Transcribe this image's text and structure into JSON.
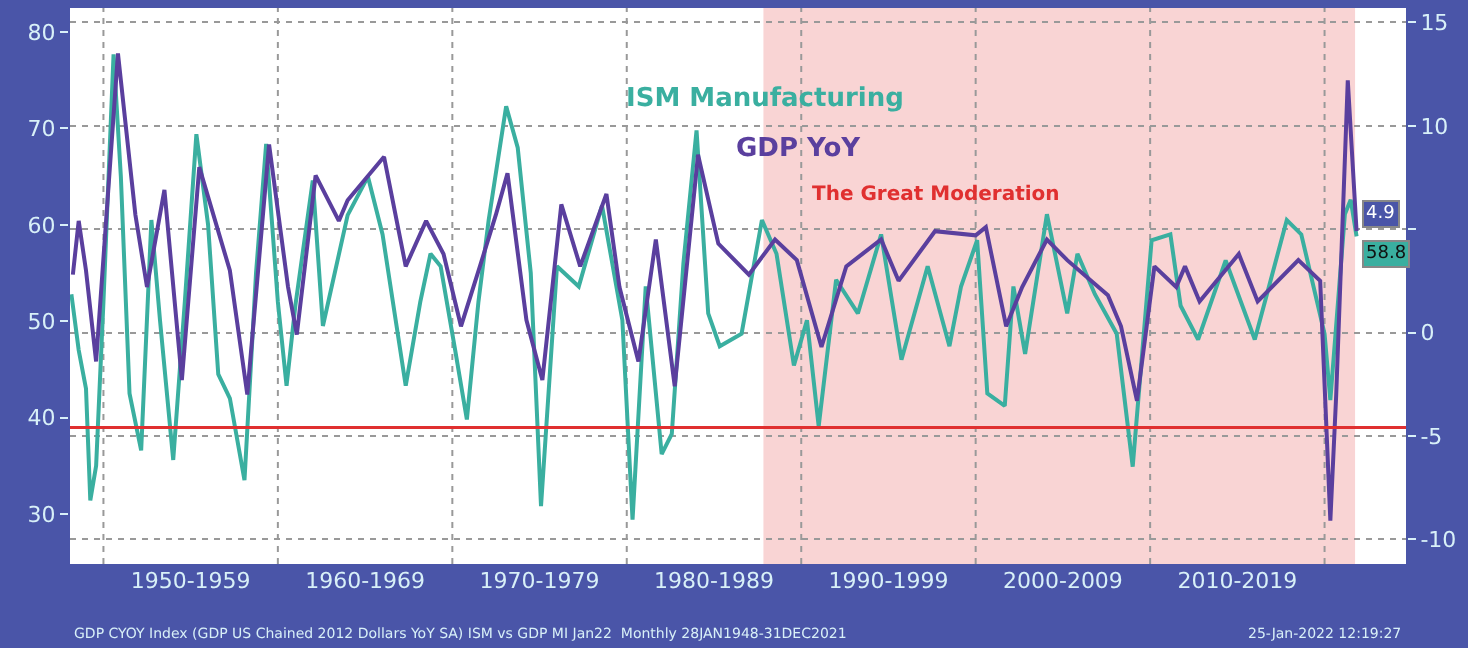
{
  "chart_data": {
    "type": "line",
    "series": [
      {
        "name": "ISM Manufacturing",
        "color": "#3aafa0",
        "axis": "y",
        "x": [
          "1948-03",
          "1948-08",
          "1949-01",
          "1949-04",
          "1949-08",
          "1950-01",
          "1950-08",
          "1951-01",
          "1951-07",
          "1952-03",
          "1952-10",
          "1953-04",
          "1954-01",
          "1954-09",
          "1955-05",
          "1956-01",
          "1956-08",
          "1957-04",
          "1958-02",
          "1958-10",
          "1959-05",
          "1960-01",
          "1960-07",
          "1961-01",
          "1962-01",
          "1962-08",
          "1964-01",
          "1965-03",
          "1966-01",
          "1967-05",
          "1968-03",
          "1968-10",
          "1969-05",
          "1970-03",
          "1970-11",
          "1971-07",
          "1972-02",
          "1973-02",
          "1973-10",
          "1974-07",
          "1975-02",
          "1976-01",
          "1977-04",
          "1978-08",
          "1979-10",
          "1980-05",
          "1981-02",
          "1982-01",
          "1982-08",
          "1983-04",
          "1984-01",
          "1984-09",
          "1985-05",
          "1986-08",
          "1987-10",
          "1988-08",
          "1989-08",
          "1990-05",
          "1991-01",
          "1992-01",
          "1993-04",
          "1994-08",
          "1995-10",
          "1997-04",
          "1998-07",
          "1999-03",
          "2000-02",
          "2000-09",
          "2001-09",
          "2002-03",
          "2002-11",
          "2004-02",
          "2005-04",
          "2005-11",
          "2006-11",
          "2008-02",
          "2009-01",
          "2010-02",
          "2011-03",
          "2011-10",
          "2012-10",
          "2014-05",
          "2016-01",
          "2017-11",
          "2018-09",
          "2020-01",
          "2020-05",
          "2021-03",
          "2021-07",
          "2021-11"
        ],
        "values": [
          52.8,
          47,
          43,
          31.4,
          35,
          52,
          77.7,
          65,
          42.5,
          36.6,
          60.5,
          50,
          35.6,
          52,
          69.4,
          60,
          44.5,
          42,
          33.5,
          55,
          68.4,
          52,
          43.3,
          51.6,
          64.6,
          49.5,
          61,
          65,
          59,
          43.3,
          52,
          57,
          55.7,
          47,
          39.8,
          52,
          60.5,
          72.3,
          68,
          55,
          30.8,
          55.7,
          53.6,
          62,
          50.1,
          29.4,
          53.6,
          36.2,
          38.3,
          56,
          69.8,
          50.8,
          47.4,
          48.7,
          60.5,
          57,
          45.4,
          50.1,
          39.1,
          54.3,
          50.8,
          59,
          46,
          55.7,
          47.4,
          53.6,
          58.4,
          42.5,
          41.2,
          53.6,
          46.6,
          61.1,
          50.8,
          57,
          52.8,
          48.7,
          34.9,
          58.4,
          59,
          51.6,
          48.1,
          56.3,
          48.1,
          60.5,
          59,
          48.7,
          41.8,
          61.1,
          62.6,
          58.8
        ],
        "value_labels": [
          null,
          null,
          null,
          null,
          null,
          null,
          null,
          null,
          null,
          null,
          null,
          null,
          null,
          null,
          null,
          null,
          null,
          null,
          null,
          null,
          null,
          null,
          null,
          null,
          null,
          null,
          null,
          null,
          null,
          null,
          null,
          null,
          null,
          null,
          null,
          null,
          null,
          null,
          null,
          null,
          null,
          null,
          null,
          null,
          null,
          null,
          null,
          null,
          null,
          null,
          null,
          null,
          null,
          null,
          null,
          null,
          null,
          null,
          null,
          null,
          null,
          null,
          null,
          null,
          null,
          null,
          null,
          null,
          null,
          null,
          null,
          null,
          null,
          null,
          null,
          null,
          null,
          null,
          null,
          null,
          null,
          null,
          null,
          null,
          null,
          null,
          null,
          null,
          null,
          "58.8"
        ]
      },
      {
        "name": "GDP YoY",
        "color": "#5a3f9e",
        "axis": "y2",
        "x": [
          "1948-04",
          "1948-08",
          "1949-01",
          "1949-08",
          "1950-11",
          "1951-11",
          "1952-07",
          "1953-07",
          "1954-07",
          "1955-07",
          "1957-04",
          "1958-04",
          "1959-07",
          "1960-08",
          "1961-02",
          "1962-03",
          "1963-07",
          "1964-01",
          "1966-02",
          "1967-05",
          "1968-07",
          "1969-07",
          "1970-07",
          "1971-08",
          "1972-07",
          "1973-03",
          "1974-04",
          "1975-03",
          "1976-04",
          "1977-05",
          "1978-11",
          "1979-08",
          "1980-09",
          "1981-09",
          "1982-10",
          "1984-02",
          "1985-04",
          "1987-01",
          "1988-07",
          "1989-10",
          "1991-03",
          "1992-08",
          "1994-08",
          "1995-08",
          "1997-09",
          "2000-01",
          "2000-08",
          "2001-10",
          "2002-09",
          "2004-02",
          "2005-04",
          "2007-08",
          "2008-05",
          "2009-04",
          "2010-04",
          "2011-07",
          "2012-01",
          "2012-11",
          "2015-02",
          "2016-03",
          "2018-07",
          "2019-10",
          "2020-05",
          "2020-09",
          "2021-05",
          "2021-11"
        ],
        "values": [
          2.8,
          5.4,
          3,
          -1.4,
          13.5,
          5.7,
          2.2,
          6.9,
          -2.3,
          8,
          3,
          -3,
          9.1,
          2.2,
          -0.1,
          7.6,
          5.4,
          6.4,
          8.5,
          3.2,
          5.4,
          3.8,
          0.3,
          3.2,
          5.7,
          7.7,
          0.6,
          -2.3,
          6.2,
          3.2,
          6.7,
          2.2,
          -1.4,
          4.5,
          -2.6,
          8.6,
          4.3,
          2.8,
          4.5,
          3.5,
          -0.7,
          3.2,
          4.5,
          2.5,
          4.9,
          4.7,
          5.1,
          0.3,
          2.2,
          4.5,
          3.5,
          1.8,
          0.3,
          -3.3,
          3.2,
          2.2,
          3.2,
          1.5,
          3.8,
          1.5,
          3.5,
          2.5,
          -9.1,
          -3,
          12.2,
          4.9
        ],
        "value_labels": [
          null,
          null,
          null,
          null,
          null,
          null,
          null,
          null,
          null,
          null,
          null,
          null,
          null,
          null,
          null,
          null,
          null,
          null,
          null,
          null,
          null,
          null,
          null,
          null,
          null,
          null,
          null,
          null,
          null,
          null,
          null,
          null,
          null,
          null,
          null,
          null,
          null,
          null,
          null,
          null,
          null,
          null,
          null,
          null,
          null,
          null,
          null,
          null,
          null,
          null,
          null,
          null,
          null,
          null,
          null,
          null,
          null,
          null,
          null,
          null,
          null,
          null,
          null,
          null,
          null,
          "4.9"
        ]
      }
    ],
    "xlim": [
      "1948-02",
      "2024-09"
    ],
    "xticks": [
      {
        "value": "1950-01",
        "label": null
      },
      {
        "value": "1955-01",
        "label": "1950-1959"
      },
      {
        "value": "1960-01",
        "label": null
      },
      {
        "value": "1965-01",
        "label": "1960-1969"
      },
      {
        "value": "1970-01",
        "label": null
      },
      {
        "value": "1975-01",
        "label": "1970-1979"
      },
      {
        "value": "1980-01",
        "label": null
      },
      {
        "value": "1985-01",
        "label": "1980-1989"
      },
      {
        "value": "1990-01",
        "label": null
      },
      {
        "value": "1995-01",
        "label": "1990-1999"
      },
      {
        "value": "2000-01",
        "label": null
      },
      {
        "value": "2005-01",
        "label": "2000-2009"
      },
      {
        "value": "2010-01",
        "label": null
      },
      {
        "value": "2015-01",
        "label": "2010-2019"
      },
      {
        "value": "2020-01",
        "label": null
      }
    ],
    "ylim": [
      24.8,
      82.5
    ],
    "yticks": [
      30,
      40,
      50,
      60,
      70,
      80
    ],
    "y2lim": [
      -11.2,
      15.7
    ],
    "y2ticks": [
      -10,
      -5,
      0,
      {
        "value": 5,
        "label": null
      },
      10,
      15
    ],
    "grid": "y2",
    "legend": false,
    "line_style": "solid",
    "marker": "none",
    "bands": [
      {
        "axis": "x",
        "from": "1987-11",
        "to": "2021-10",
        "label": "The Great Moderation",
        "color": "#f7c6c6"
      }
    ],
    "ref_lines": [
      {
        "axis": "y2",
        "value": -4.6,
        "color": "#e03030"
      }
    ],
    "annotations": [
      "GDP CYOY Index (GDP US Chained 2012 Dollars YoY SA) ISM vs GDP MI Jan22  Monthly 28JAN1948-31DEC2021",
      "25-Jan-2022 12:19:27"
    ]
  }
}
